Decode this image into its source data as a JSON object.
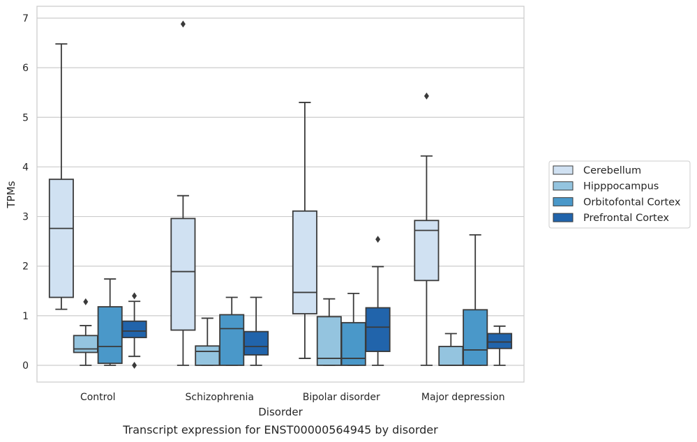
{
  "chart_data": {
    "type": "box",
    "title": "",
    "caption": "Transcript expression for ENST00000564945 by disorder",
    "xlabel": "Disorder",
    "ylabel": "TPMs",
    "ylim": [
      -0.33,
      7.22
    ],
    "yticks": [
      0,
      1,
      2,
      3,
      4,
      5,
      6,
      7
    ],
    "grid": "horizontal",
    "legend_position": "right",
    "categories": [
      "Control",
      "Schizophrenia",
      "Bipolar disorder",
      "Major depression"
    ],
    "series": [
      {
        "name": "Cerebellum",
        "color": "#d0e1f2",
        "boxes": [
          {
            "whisker_low": 1.13,
            "q1": 1.37,
            "median": 2.76,
            "q3": 3.75,
            "whisker_high": 6.48,
            "outliers": []
          },
          {
            "whisker_low": 0.0,
            "q1": 0.71,
            "median": 1.89,
            "q3": 2.96,
            "whisker_high": 3.42,
            "outliers": [
              6.88
            ]
          },
          {
            "whisker_low": 0.14,
            "q1": 1.04,
            "median": 1.47,
            "q3": 3.11,
            "whisker_high": 5.3,
            "outliers": []
          },
          {
            "whisker_low": 0.0,
            "q1": 1.71,
            "median": 2.72,
            "q3": 2.92,
            "whisker_high": 4.22,
            "outliers": [
              5.43
            ]
          }
        ]
      },
      {
        "name": "Hipppocampus",
        "color": "#94c4df",
        "boxes": [
          {
            "whisker_low": 0.0,
            "q1": 0.26,
            "median": 0.33,
            "q3": 0.6,
            "whisker_high": 0.8,
            "outliers": [
              1.28
            ]
          },
          {
            "whisker_low": 0.0,
            "q1": 0.0,
            "median": 0.28,
            "q3": 0.39,
            "whisker_high": 0.95,
            "outliers": []
          },
          {
            "whisker_low": 0.0,
            "q1": 0.0,
            "median": 0.14,
            "q3": 0.98,
            "whisker_high": 1.34,
            "outliers": []
          },
          {
            "whisker_low": 0.0,
            "q1": 0.0,
            "median": 0.0,
            "q3": 0.38,
            "whisker_high": 0.64,
            "outliers": []
          }
        ]
      },
      {
        "name": "Orbitofontal Cortex",
        "color": "#4a98c9",
        "boxes": [
          {
            "whisker_low": 0.0,
            "q1": 0.04,
            "median": 0.38,
            "q3": 1.18,
            "whisker_high": 1.74,
            "outliers": []
          },
          {
            "whisker_low": 0.0,
            "q1": 0.0,
            "median": 0.74,
            "q3": 1.02,
            "whisker_high": 1.37,
            "outliers": []
          },
          {
            "whisker_low": 0.0,
            "q1": 0.0,
            "median": 0.14,
            "q3": 0.86,
            "whisker_high": 1.45,
            "outliers": []
          },
          {
            "whisker_low": 0.0,
            "q1": 0.0,
            "median": 0.31,
            "q3": 1.12,
            "whisker_high": 2.63,
            "outliers": []
          }
        ]
      },
      {
        "name": "Prefrontal Cortex",
        "color": "#2164ab",
        "boxes": [
          {
            "whisker_low": 0.18,
            "q1": 0.56,
            "median": 0.69,
            "q3": 0.89,
            "whisker_high": 1.29,
            "outliers": [
              1.4,
              0.0
            ]
          },
          {
            "whisker_low": 0.0,
            "q1": 0.21,
            "median": 0.38,
            "q3": 0.68,
            "whisker_high": 1.37,
            "outliers": []
          },
          {
            "whisker_low": 0.0,
            "q1": 0.28,
            "median": 0.77,
            "q3": 1.16,
            "whisker_high": 1.99,
            "outliers": [
              2.54
            ]
          },
          {
            "whisker_low": 0.0,
            "q1": 0.34,
            "median": 0.47,
            "q3": 0.64,
            "whisker_high": 0.79,
            "outliers": []
          }
        ]
      }
    ]
  }
}
